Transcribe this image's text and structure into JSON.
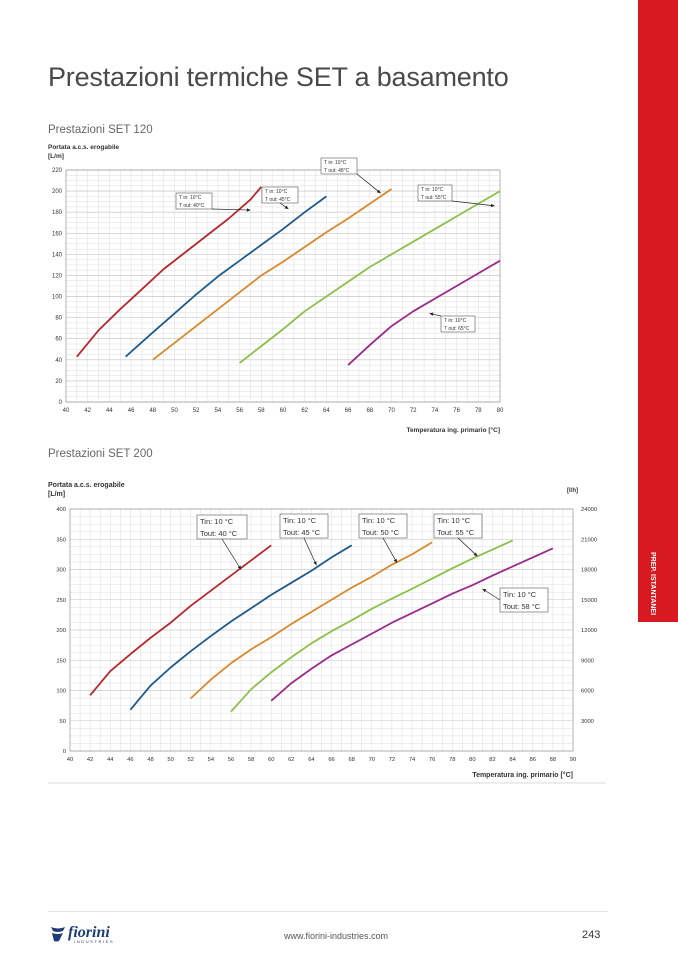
{
  "page": {
    "title": "Prestazioni termiche SET a basamento",
    "side_tab": "PREP. ISTANTANEI",
    "footer": {
      "logo_text": "fiorini",
      "logo_sub": "INDUSTRIES",
      "url": "www.fiorini-industries.com",
      "page_number": "243"
    },
    "colors": {
      "red": "#b5282e",
      "blue": "#1f5a8c",
      "orange": "#d9882a",
      "green": "#8cc04a",
      "purple": "#9b2a8c",
      "accent": "#d71920"
    }
  },
  "chart_data": [
    {
      "type": "line",
      "title": "Prestazioni SET 120",
      "ylabel": "Portata a.c.s. erogabile [L/m]",
      "xlabel": "Temperatura ing. primario [°C]",
      "xlim": [
        40,
        80
      ],
      "ylim": [
        0,
        220
      ],
      "xticks": [
        40,
        42,
        44,
        46,
        48,
        50,
        52,
        54,
        56,
        58,
        60,
        62,
        64,
        66,
        68,
        70,
        72,
        74,
        76,
        78,
        80
      ],
      "yticks": [
        0,
        20,
        40,
        60,
        80,
        100,
        120,
        140,
        160,
        180,
        200,
        220
      ],
      "grid": true,
      "series": [
        {
          "color": "#b5282e",
          "x": [
            41,
            43,
            45,
            47,
            49,
            51,
            53,
            55,
            57,
            58
          ],
          "y": [
            43,
            68,
            88,
            107,
            126,
            142,
            158,
            174,
            192,
            204
          ]
        },
        {
          "color": "#1f5a8c",
          "x": [
            45.5,
            48,
            50,
            52,
            54,
            56,
            58,
            60,
            62,
            64
          ],
          "y": [
            43,
            66,
            84,
            102,
            119,
            134,
            149,
            164,
            180,
            195
          ]
        },
        {
          "color": "#d9882a",
          "x": [
            48,
            50,
            52,
            54,
            56,
            58,
            60,
            62,
            64,
            66,
            68,
            70
          ],
          "y": [
            40,
            56,
            72,
            88,
            104,
            120,
            133,
            147,
            161,
            174,
            188,
            202
          ]
        },
        {
          "color": "#8cc04a",
          "x": [
            56,
            58,
            60,
            62,
            64,
            66,
            68,
            70,
            72,
            74,
            76,
            78,
            80
          ],
          "y": [
            37,
            53,
            69,
            86,
            100,
            114,
            128,
            140,
            152,
            164,
            176,
            188,
            200
          ]
        },
        {
          "color": "#9b2a8c",
          "x": [
            66,
            68,
            70,
            72,
            74,
            76,
            78,
            80
          ],
          "y": [
            35,
            54,
            72,
            86,
            98,
            110,
            122,
            134
          ]
        }
      ],
      "annotations": [
        {
          "lines": [
            "T in: 10°C",
            "T out: 40°C"
          ],
          "target": [
            57,
            182
          ]
        },
        {
          "lines": [
            "T in: 10°C",
            "T out: 45°C"
          ],
          "target": [
            60.5,
            183
          ]
        },
        {
          "lines": [
            "T in: 10°C",
            "T out: 48°C"
          ],
          "target": [
            69,
            198
          ]
        },
        {
          "lines": [
            "T in: 10°C",
            "T out: 55°C"
          ],
          "target": [
            79.5,
            186
          ]
        },
        {
          "lines": [
            "T in: 10°C",
            "T out: 65°C"
          ],
          "target": [
            73.5,
            84
          ]
        }
      ]
    },
    {
      "type": "line",
      "title": "Prestazioni SET 200",
      "ylabel": "Portata a.c.s. erogabile [L/m]",
      "y2label": "[l/h]",
      "xlabel": "Temperatura ing. primario [°C]",
      "xlim": [
        40,
        90
      ],
      "ylim": [
        0,
        400
      ],
      "xticks": [
        40,
        42,
        44,
        46,
        48,
        50,
        52,
        54,
        56,
        58,
        60,
        62,
        64,
        66,
        68,
        70,
        72,
        74,
        76,
        78,
        80,
        82,
        84,
        86,
        88,
        90
      ],
      "yticks": [
        0,
        50,
        100,
        150,
        200,
        250,
        300,
        350,
        400
      ],
      "y2ticks": [
        3000,
        6000,
        9000,
        12000,
        15000,
        18000,
        21000,
        24000
      ],
      "grid": true,
      "series": [
        {
          "color": "#b5282e",
          "x": [
            42,
            44,
            46,
            48,
            50,
            52,
            54,
            56,
            58,
            60
          ],
          "y": [
            92,
            132,
            160,
            187,
            212,
            240,
            265,
            290,
            315,
            340
          ]
        },
        {
          "color": "#1f5a8c",
          "x": [
            46,
            48,
            50,
            52,
            54,
            56,
            58,
            60,
            62,
            64,
            66,
            68
          ],
          "y": [
            68,
            108,
            138,
            165,
            190,
            214,
            236,
            258,
            278,
            298,
            320,
            340
          ]
        },
        {
          "color": "#d9882a",
          "x": [
            52,
            54,
            56,
            58,
            60,
            62,
            64,
            66,
            68,
            70,
            72,
            74,
            76
          ],
          "y": [
            87,
            118,
            145,
            168,
            188,
            210,
            230,
            250,
            270,
            288,
            308,
            325,
            345
          ]
        },
        {
          "color": "#8cc04a",
          "x": [
            56,
            58,
            60,
            62,
            64,
            66,
            68,
            70,
            72,
            74,
            76,
            78,
            80,
            82,
            84
          ],
          "y": [
            65,
            102,
            130,
            155,
            178,
            198,
            216,
            235,
            252,
            268,
            285,
            302,
            318,
            333,
            348
          ]
        },
        {
          "color": "#9b2a8c",
          "x": [
            60,
            62,
            64,
            66,
            68,
            70,
            72,
            74,
            76,
            78,
            80,
            82,
            84,
            86,
            88
          ],
          "y": [
            83,
            112,
            136,
            158,
            176,
            194,
            212,
            228,
            244,
            260,
            274,
            290,
            305,
            320,
            335
          ]
        }
      ],
      "annotations": [
        {
          "lines": [
            "Tin: 10 °C",
            "Tout: 40 °C"
          ],
          "target": [
            57,
            300
          ]
        },
        {
          "lines": [
            "Tin: 10 °C",
            "Tout: 45 °C"
          ],
          "target": [
            64.5,
            307
          ]
        },
        {
          "lines": [
            "Tin: 10 °C",
            "Tout: 50 °C"
          ],
          "target": [
            72.5,
            311
          ]
        },
        {
          "lines": [
            "Tin: 10 °C",
            "Tout: 55 °C"
          ],
          "target": [
            80.5,
            322
          ]
        },
        {
          "lines": [
            "Tin: 10 °C",
            "Tout: 58 °C"
          ],
          "target": [
            81,
            268
          ]
        }
      ]
    }
  ]
}
